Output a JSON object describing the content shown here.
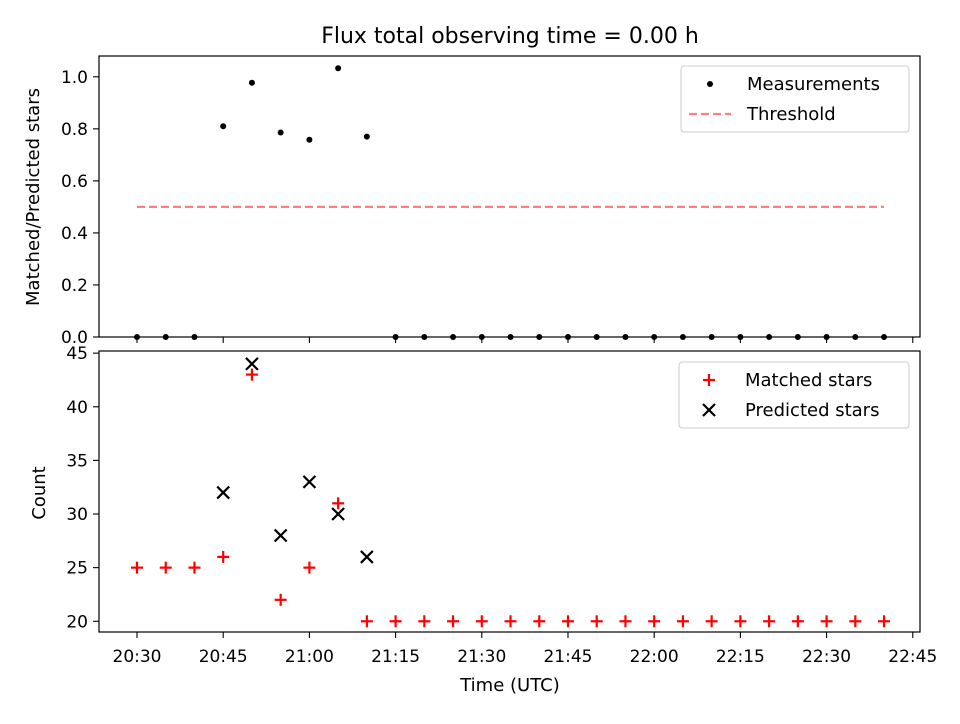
{
  "chart_data": [
    {
      "type": "scatter",
      "title": "Flux total observing time = 0.00 h",
      "xlabel": "",
      "ylabel": "Matched/Predicted stars",
      "ylim": [
        0,
        1.08
      ],
      "yticks": [
        "0.0",
        "0.2",
        "0.4",
        "0.6",
        "0.8",
        "1.0"
      ],
      "legend_position": "top-right",
      "series": [
        {
          "name": "Measurements",
          "marker": "dot",
          "color": "#000000",
          "x": [
            "20:30",
            "20:35",
            "20:40",
            "20:45",
            "20:50",
            "20:55",
            "21:00",
            "21:05",
            "21:10",
            "21:15",
            "21:20",
            "21:25",
            "21:30",
            "21:35",
            "21:40",
            "21:45",
            "21:50",
            "21:55",
            "22:00",
            "22:05",
            "22:10",
            "22:15",
            "22:20",
            "22:25",
            "22:30",
            "22:35",
            "22:40"
          ],
          "values": [
            0,
            0,
            0,
            0.81,
            0.977,
            0.786,
            0.758,
            1.033,
            0.77,
            0,
            0,
            0,
            0,
            0,
            0,
            0,
            0,
            0,
            0,
            0,
            0,
            0,
            0,
            0,
            0,
            0,
            0
          ]
        },
        {
          "name": "Threshold",
          "marker": "dashed-line",
          "color": "#ff7f7f",
          "x": [
            "20:30",
            "22:40"
          ],
          "values": [
            0.5,
            0.5
          ]
        }
      ]
    },
    {
      "type": "scatter",
      "title": "",
      "xlabel": "Time (UTC)",
      "ylabel": "Count",
      "ylim": [
        19,
        45.2
      ],
      "yticks": [
        "20",
        "25",
        "30",
        "35",
        "40",
        "45"
      ],
      "xticks": [
        "20:30",
        "20:45",
        "21:00",
        "21:15",
        "21:30",
        "21:45",
        "22:00",
        "22:15",
        "22:30",
        "22:45"
      ],
      "legend_position": "top-right",
      "series": [
        {
          "name": "Matched stars",
          "marker": "plus",
          "color": "#ff0000",
          "x": [
            "20:30",
            "20:35",
            "20:40",
            "20:45",
            "20:50",
            "20:55",
            "21:00",
            "21:05",
            "21:10",
            "21:15",
            "21:20",
            "21:25",
            "21:30",
            "21:35",
            "21:40",
            "21:45",
            "21:50",
            "21:55",
            "22:00",
            "22:05",
            "22:10",
            "22:15",
            "22:20",
            "22:25",
            "22:30",
            "22:35",
            "22:40"
          ],
          "values": [
            25,
            25,
            25,
            26,
            43,
            22,
            25,
            31,
            20,
            20,
            20,
            20,
            20,
            20,
            20,
            20,
            20,
            20,
            20,
            20,
            20,
            20,
            20,
            20,
            20,
            20,
            20
          ]
        },
        {
          "name": "Predicted stars",
          "marker": "x",
          "color": "#000000",
          "x": [
            "20:45",
            "20:50",
            "20:55",
            "21:00",
            "21:05",
            "21:10"
          ],
          "values": [
            32,
            44,
            28,
            33,
            30,
            26
          ]
        }
      ]
    }
  ]
}
